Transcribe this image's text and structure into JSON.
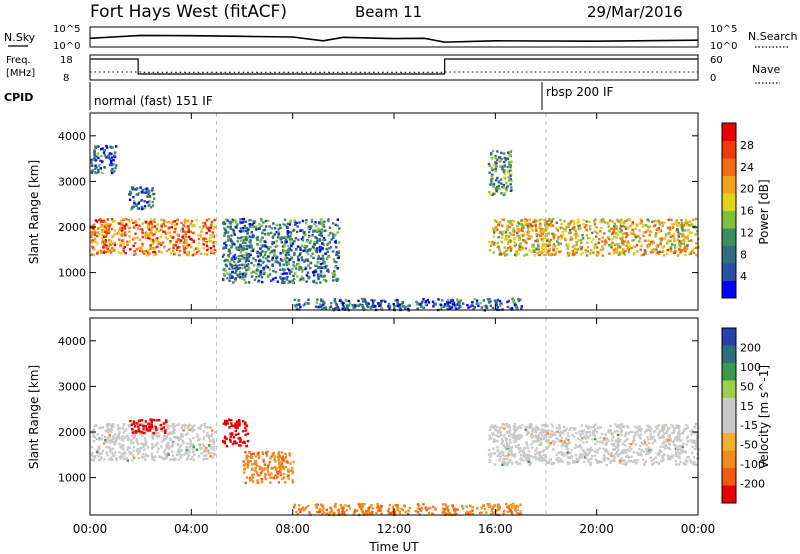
{
  "header": {
    "station": "Fort Hays West (fitACF)",
    "beam": "Beam 11",
    "date": "29/Mar/2016"
  },
  "noise_panel": {
    "left_label": "N.Sky",
    "right_label": "N.Search",
    "ticks": [
      "10^5",
      "10^0"
    ]
  },
  "freq_panel": {
    "left_label_1": "Freq.",
    "left_label_2": "[MHz]",
    "left_ticks": [
      "18",
      "8"
    ],
    "right_label": "Nave",
    "right_ticks": [
      "60",
      "0"
    ]
  },
  "cpid_panel": {
    "label": "CPID",
    "programs": [
      "normal (fast) 151 IF",
      "rbsp 200 IF"
    ]
  },
  "x_axis": {
    "label": "Time UT",
    "ticks": [
      "00:00",
      "04:00",
      "08:00",
      "12:00",
      "16:00",
      "20:00",
      "00:00"
    ]
  },
  "colors": {
    "power_scale": [
      "#0000ff",
      "#2a4fa8",
      "#2f6e7a",
      "#3c8f5c",
      "#7fc23a",
      "#e2d21c",
      "#f2a41e",
      "#f36b12",
      "#ee3b0c",
      "#e80000"
    ],
    "velocity_scale": [
      "#2a3fb0",
      "#2d6f78",
      "#3a9a4b",
      "#9ccf4a",
      "#c9c9c9",
      "#c9c9c9",
      "#f2b12a",
      "#f28b1d",
      "#f05a14",
      "#e80000"
    ]
  },
  "chart_data": [
    {
      "type": "line",
      "title": "N.Sky / N.Search",
      "x_range_hours": [
        0,
        24
      ],
      "ylim_exp": [
        0,
        5
      ],
      "series": [
        {
          "name": "N.Sky",
          "x": [
            0,
            2,
            4,
            6,
            8,
            9.2,
            10,
            11,
            12,
            13.2,
            14,
            16,
            20,
            24
          ],
          "y": [
            2.1,
            3.0,
            2.9,
            2.7,
            2.5,
            1.3,
            2.4,
            2.2,
            2.0,
            2.1,
            0.9,
            1.3,
            1.2,
            1.5
          ]
        },
        {
          "name": "N.Search",
          "x": [
            0,
            24
          ],
          "y": [
            null,
            null
          ]
        }
      ]
    },
    {
      "type": "line",
      "title": "Freq. / Nave",
      "left_ylim": [
        8,
        18
      ],
      "right_ylim": [
        0,
        60
      ],
      "series": [
        {
          "name": "Freq.",
          "x": [
            0,
            1.9,
            1.9,
            14,
            14,
            24
          ],
          "y": [
            17.5,
            17.5,
            10,
            10,
            17.5,
            17.5
          ]
        },
        {
          "name": "Nave",
          "x": [
            0,
            2,
            2,
            14,
            14,
            24
          ],
          "y": [
            18,
            18,
            17,
            17,
            18,
            18
          ]
        }
      ]
    },
    {
      "type": "heatmap",
      "quantity": "Power",
      "ylabel": "Slant Range [km]",
      "yticks": [
        "4000",
        "3000",
        "2000",
        "1000"
      ],
      "ylim": [
        180,
        4500
      ],
      "colorbar_label": "Power [dB]",
      "colorbar_ticks": [
        "28",
        "24",
        "20",
        "16",
        "12",
        "8",
        "4"
      ],
      "colorbar_range": [
        0,
        30
      ],
      "regions": [
        {
          "x": [
            0,
            4.9
          ],
          "range_km": [
            1400,
            2200
          ],
          "value": 22
        },
        {
          "x": [
            1.5,
            2.5
          ],
          "range_km": [
            2400,
            2900
          ],
          "value": 6
        },
        {
          "x": [
            0,
            1
          ],
          "range_km": [
            3200,
            3800
          ],
          "value": 6
        },
        {
          "x": [
            5.2,
            9.8
          ],
          "range_km": [
            800,
            2200
          ],
          "value": 8
        },
        {
          "x": [
            15.7,
            24
          ],
          "range_km": [
            1400,
            2200
          ],
          "value": 18
        },
        {
          "x": [
            15.7,
            16.6
          ],
          "range_km": [
            2700,
            3700
          ],
          "value": 10
        },
        {
          "x": [
            8,
            17
          ],
          "range_km": [
            200,
            450
          ],
          "value": 6
        }
      ]
    },
    {
      "type": "heatmap",
      "quantity": "Velocity",
      "ylabel": "Slant Range [km]",
      "yticks": [
        "4000",
        "3000",
        "2000",
        "1000"
      ],
      "ylim": [
        180,
        4500
      ],
      "colorbar_label": "Velocity [m s^-1]",
      "colorbar_ticks": [
        "200",
        "100",
        "50",
        "15",
        "-15",
        "-50",
        "-100",
        "-200"
      ],
      "regions": [
        {
          "x": [
            0,
            4.9
          ],
          "range_km": [
            1400,
            2200
          ],
          "value": 0
        },
        {
          "x": [
            1.5,
            3
          ],
          "range_km": [
            2000,
            2300
          ],
          "value": -250
        },
        {
          "x": [
            5.2,
            6.2
          ],
          "range_km": [
            1700,
            2300
          ],
          "value": -250
        },
        {
          "x": [
            6,
            8
          ],
          "range_km": [
            900,
            1600
          ],
          "value": -60
        },
        {
          "x": [
            15.7,
            24
          ],
          "range_km": [
            1300,
            2200
          ],
          "value": 0
        },
        {
          "x": [
            8,
            17
          ],
          "range_km": [
            200,
            450
          ],
          "value": -60
        }
      ]
    }
  ]
}
